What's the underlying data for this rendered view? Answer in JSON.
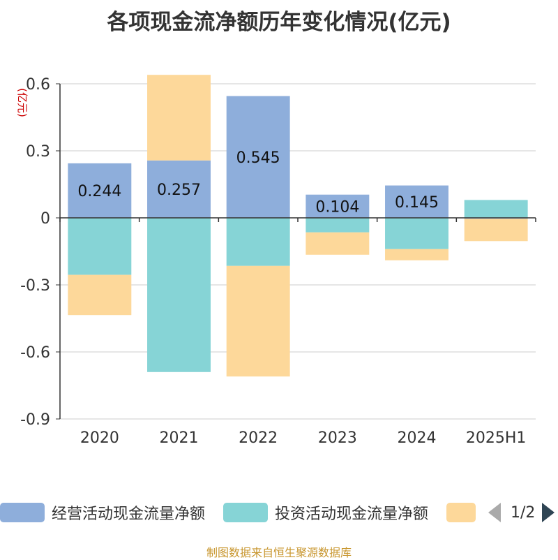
{
  "colors": {
    "operating": "#8eaedb",
    "investing": "#86d4d6",
    "financing": "#fdd89a",
    "axis": "#333333",
    "grid": "#cccccc",
    "unit": "#cc0000",
    "source": "#c8962e"
  },
  "chart_data": {
    "type": "bar",
    "stacked": true,
    "title": "各项现金流净额历年变化情况(亿元)",
    "ylabel": "(亿元)",
    "ylim": [
      -0.9,
      0.6
    ],
    "yticks": [
      0.6,
      0.3,
      0,
      -0.3,
      -0.6,
      -0.9
    ],
    "ytick_labels": [
      "0.6",
      "0.3",
      "0",
      "-0.3",
      "-0.6",
      "-0.9"
    ],
    "categories": [
      "2020",
      "2021",
      "2022",
      "2023",
      "2024",
      "2025H1"
    ],
    "series": [
      {
        "name": "经营活动现金流量净额",
        "key": "operating",
        "values": [
          0.244,
          0.257,
          0.545,
          0.104,
          0.145,
          -0.004
        ],
        "labels": [
          "0.244",
          "0.257",
          "0.545",
          "0.104",
          "0.145",
          ""
        ]
      },
      {
        "name": "投资活动现金流量净额",
        "key": "investing",
        "values": [
          -0.255,
          -0.69,
          -0.215,
          -0.065,
          -0.14,
          0.08
        ],
        "labels": [
          "",
          "",
          "",
          "",
          "",
          ""
        ]
      },
      {
        "name": "",
        "key": "financing",
        "values": [
          -0.18,
          0.383,
          -0.495,
          -0.1,
          -0.05,
          -0.1
        ],
        "labels": [
          "",
          "",
          "",
          "",
          "",
          ""
        ]
      }
    ],
    "grid": true,
    "legend_position": "bottom"
  },
  "legend": {
    "items": [
      {
        "label": "经营活动现金流量净额",
        "key": "operating"
      },
      {
        "label": "投资活动现金流量净额",
        "key": "investing"
      },
      {
        "label": "",
        "key": "financing"
      }
    ],
    "page": "1/2"
  },
  "source": "制图数据来自恒生聚源数据库"
}
